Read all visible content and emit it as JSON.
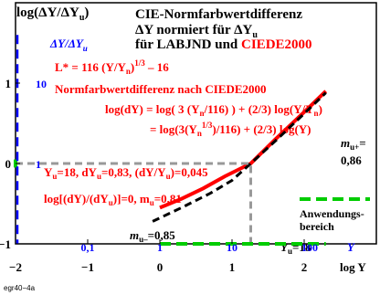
{
  "header": {
    "ylabel_main": "log(ΔY/ΔY",
    "ylabel_sub": "u",
    "ylabel_close": ")",
    "title_line1": "CIE-Normfarbwertdifferenz",
    "title_line2_a": "ΔY normiert für ΔY",
    "title_line2_sub": "u",
    "title_line3_a": "für LABJND und ",
    "title_line3_b": "CIEDE2000"
  },
  "inner": {
    "ylabel_main": "ΔY/ΔY",
    "ylabel_sub": "u",
    "lstar_a": "L* = 116 (Y/Y",
    "lstar_sub": "n",
    "lstar_b": ")",
    "lstar_exp": "1/3",
    "lstar_c": " – 16",
    "method_title": "Normfarbwertdifferenz nach CIEDE2000",
    "eq1_a": "log(dY) = log( 3 (Y",
    "eq1_sub1": "n",
    "eq1_b": "/116) ) + (2/3) log(Y/Y",
    "eq1_sub2": "n",
    "eq1_c": ")",
    "eq2_a": "= log(3(Y",
    "eq2_sub": "n",
    "eq2_exp": "1/3",
    "eq2_b": ")/116) + (2/3) log(Y)",
    "yu_line": "Y",
    "yu_line_sub1": "u",
    "yu_line_b": "=18, dY",
    "yu_line_sub2": "u",
    "yu_line_c": "=0,83, (dY/Y",
    "yu_line_sub3": "u",
    "yu_line_d": ")=0,045",
    "log_line_a": "log[(dY)/(dY",
    "log_line_sub1": "u",
    "log_line_b": ")]=0, m",
    "log_line_sub2": "u",
    "log_line_c": "=0,81",
    "mu_plus_a": "m",
    "mu_plus_sub": "u+",
    "mu_plus_b": "=",
    "mu_plus_val": "0,86",
    "mu_minus_a": "m",
    "mu_minus_sub": "u–",
    "mu_minus_b": "=0,85",
    "legend_line1": "Anwendungs-",
    "legend_line2": "bereich",
    "yu18_a": "Y",
    "yu18_sub": "u",
    "yu18_b": "=18",
    "footer_code": "egr40−4a"
  },
  "colors": {
    "red": "#ff0000",
    "blue": "#0000ff",
    "green": "#00cc00",
    "grey": "#999999",
    "black": "#000000"
  },
  "chart_data": {
    "type": "line",
    "xlim": [
      -2,
      3
    ],
    "ylim": [
      -1,
      2
    ],
    "x_ticks": [
      -2,
      -1,
      0,
      1,
      2
    ],
    "x_tick_labels": [
      "−2",
      "−1",
      "0",
      "1",
      "2"
    ],
    "y_ticks": [
      -1,
      0,
      1
    ],
    "y_tick_labels": [
      "−1",
      "0",
      "1"
    ],
    "inner_y_tick_labels": [
      "1",
      "10"
    ],
    "inner_x_tick_labels": [
      "0,1",
      "1",
      "10",
      "100"
    ],
    "inner_x_ticks": [
      -1,
      0,
      1,
      2
    ],
    "xlabel": "log Y",
    "inner_xlabel": "Y",
    "series": [
      {
        "color": "red",
        "style": "solid",
        "x": [
          0.0,
          0.3,
          0.6,
          0.9,
          1.26,
          1.6,
          2.0,
          2.3
        ],
        "y": [
          -0.55,
          -0.44,
          -0.31,
          -0.16,
          0.0,
          0.3,
          0.64,
          0.9
        ]
      },
      {
        "color": "black",
        "style": "dashed",
        "x": [
          -0.1,
          0.3,
          0.7,
          1.0,
          1.26,
          1.6,
          2.0,
          2.3
        ],
        "y": [
          -0.72,
          -0.55,
          -0.37,
          -0.21,
          0.0,
          0.28,
          0.62,
          0.88
        ]
      },
      {
        "color": "grey",
        "style": "dashed",
        "x": [
          -2,
          1.26,
          1.26
        ],
        "y": [
          0,
          0,
          -1
        ]
      },
      {
        "color": "green",
        "style": "dashed",
        "x": [
          0.0,
          2.3
        ],
        "y": [
          -1,
          -1
        ]
      },
      {
        "color": "green",
        "style": "dashed",
        "x": [
          -2,
          -2
        ],
        "y": [
          -0.05,
          0.05
        ]
      }
    ]
  }
}
